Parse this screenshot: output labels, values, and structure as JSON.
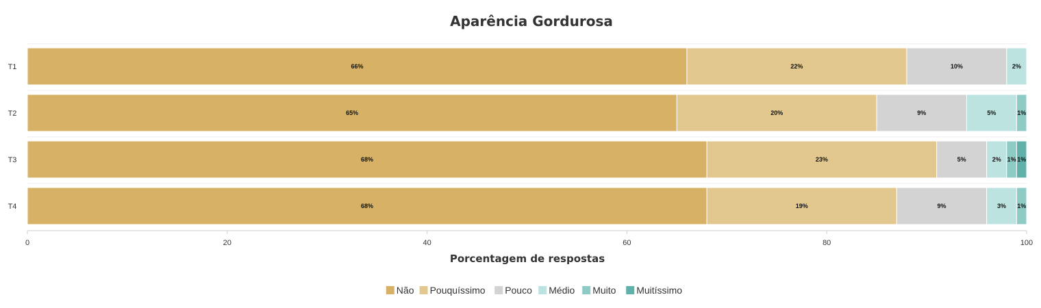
{
  "chart_data": {
    "type": "bar",
    "orientation": "horizontal",
    "stacked": true,
    "title": "Aparência Gordurosa",
    "xlabel": "Porcentagem de respostas",
    "ylabel": "",
    "xlim": [
      0,
      100
    ],
    "x_ticks": [
      "0",
      "20",
      "40",
      "60",
      "80",
      "100"
    ],
    "categories": [
      "T1",
      "T2",
      "T3",
      "T4"
    ],
    "series": [
      {
        "name": "Não",
        "color": "#d7b266",
        "values": [
          66,
          65,
          68,
          68
        ],
        "labels": [
          "66%",
          "65%",
          "68%",
          "68%"
        ]
      },
      {
        "name": "Pouquíssimo",
        "color": "#e2c78f",
        "values": [
          22,
          20,
          23,
          19
        ],
        "labels": [
          "22%",
          "20%",
          "23%",
          "19%"
        ]
      },
      {
        "name": "Pouco",
        "color": "#d3d3d3",
        "values": [
          10,
          9,
          5,
          9
        ],
        "labels": [
          "10%",
          "9%",
          "5%",
          "9%"
        ]
      },
      {
        "name": "Médio",
        "color": "#bde3e0",
        "values": [
          2,
          5,
          2,
          3
        ],
        "labels": [
          "2%",
          "5%",
          "2%",
          "3%"
        ]
      },
      {
        "name": "Muito",
        "color": "#8fcbc5",
        "values": [
          0,
          1,
          1,
          1
        ],
        "labels": [
          "",
          "1%",
          "1%",
          "1%"
        ]
      },
      {
        "name": "Muitíssimo",
        "color": "#5fb1aa",
        "values": [
          0,
          0,
          1,
          0
        ],
        "labels": [
          "",
          "",
          "1%",
          ""
        ]
      }
    ],
    "grid": false,
    "legend_position": "bottom-center"
  }
}
